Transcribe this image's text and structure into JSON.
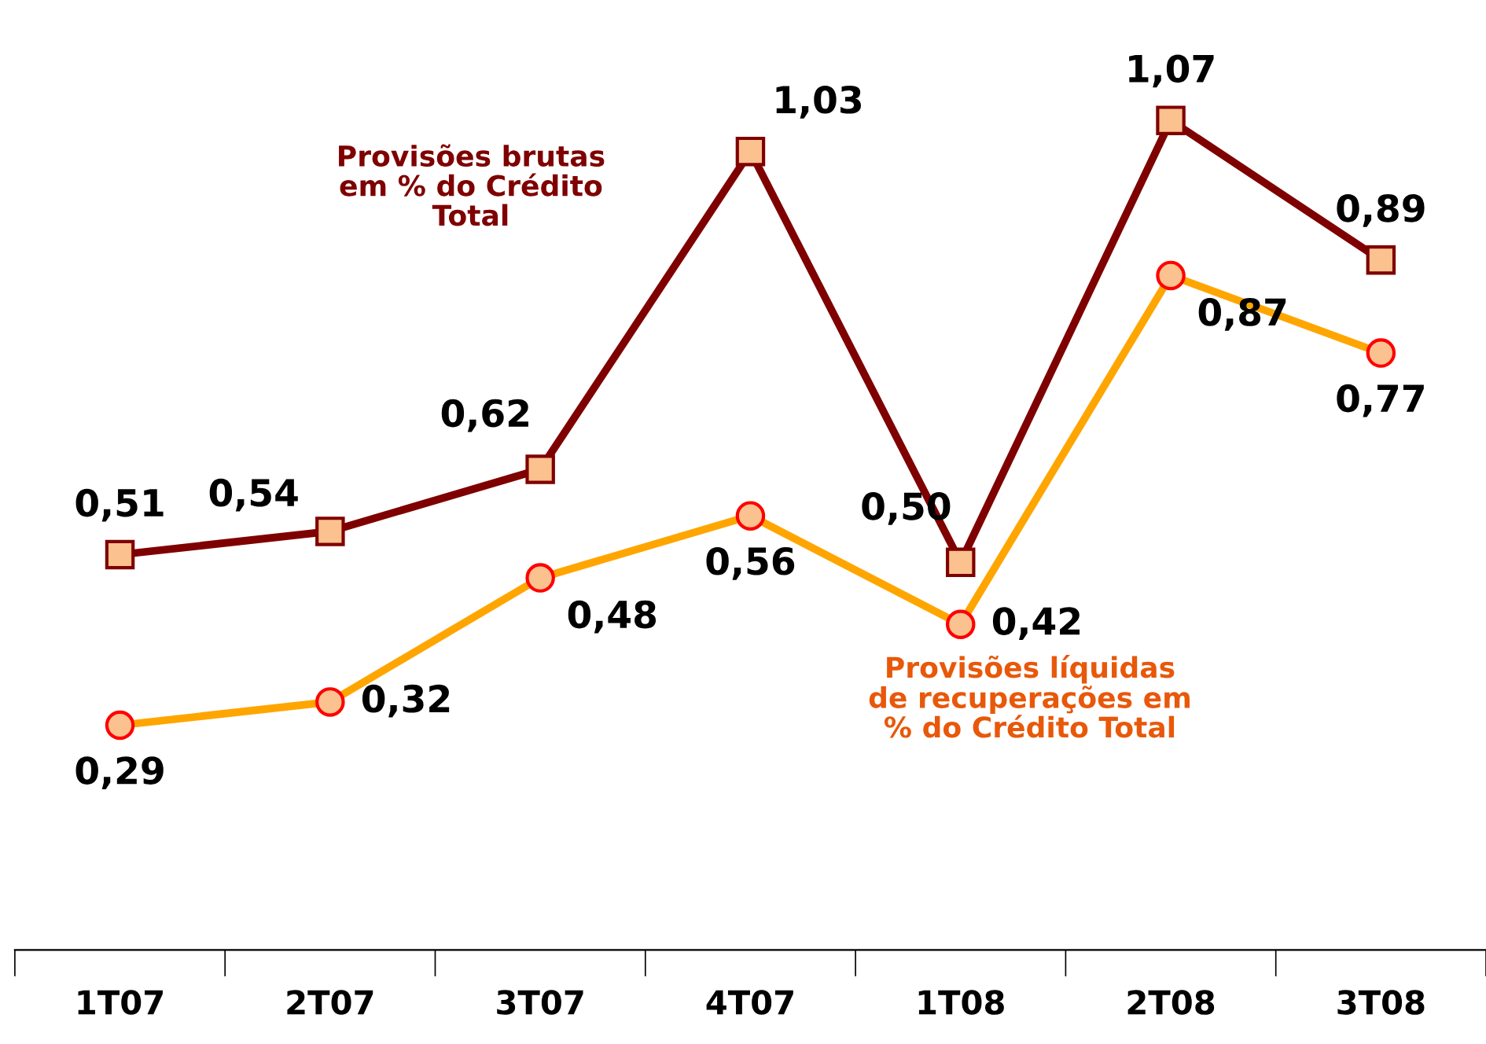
{
  "chart_data": {
    "type": "line",
    "categories": [
      "1T07",
      "2T07",
      "3T07",
      "4T07",
      "1T08",
      "2T08",
      "3T08"
    ],
    "series": [
      {
        "name": "Provisões brutas em % do Crédito Total",
        "color": "#7f0000",
        "marker": "square",
        "values": [
          0.51,
          0.54,
          0.62,
          1.03,
          0.5,
          1.07,
          0.89
        ],
        "value_labels": [
          "0,51",
          "0,54",
          "0,62",
          "1,03",
          "0,50",
          "1,07",
          "0,89"
        ]
      },
      {
        "name": "Provisões líquidas de recuperações em % do Crédito Total",
        "color": "#ffa500",
        "marker": "circle",
        "values": [
          0.29,
          0.32,
          0.48,
          0.56,
          0.42,
          0.87,
          0.77
        ],
        "value_labels": [
          "0,29",
          "0,32",
          "0,48",
          "0,56",
          "0,42",
          "0,87",
          "0,77"
        ]
      }
    ],
    "grid": false,
    "legend": false
  }
}
